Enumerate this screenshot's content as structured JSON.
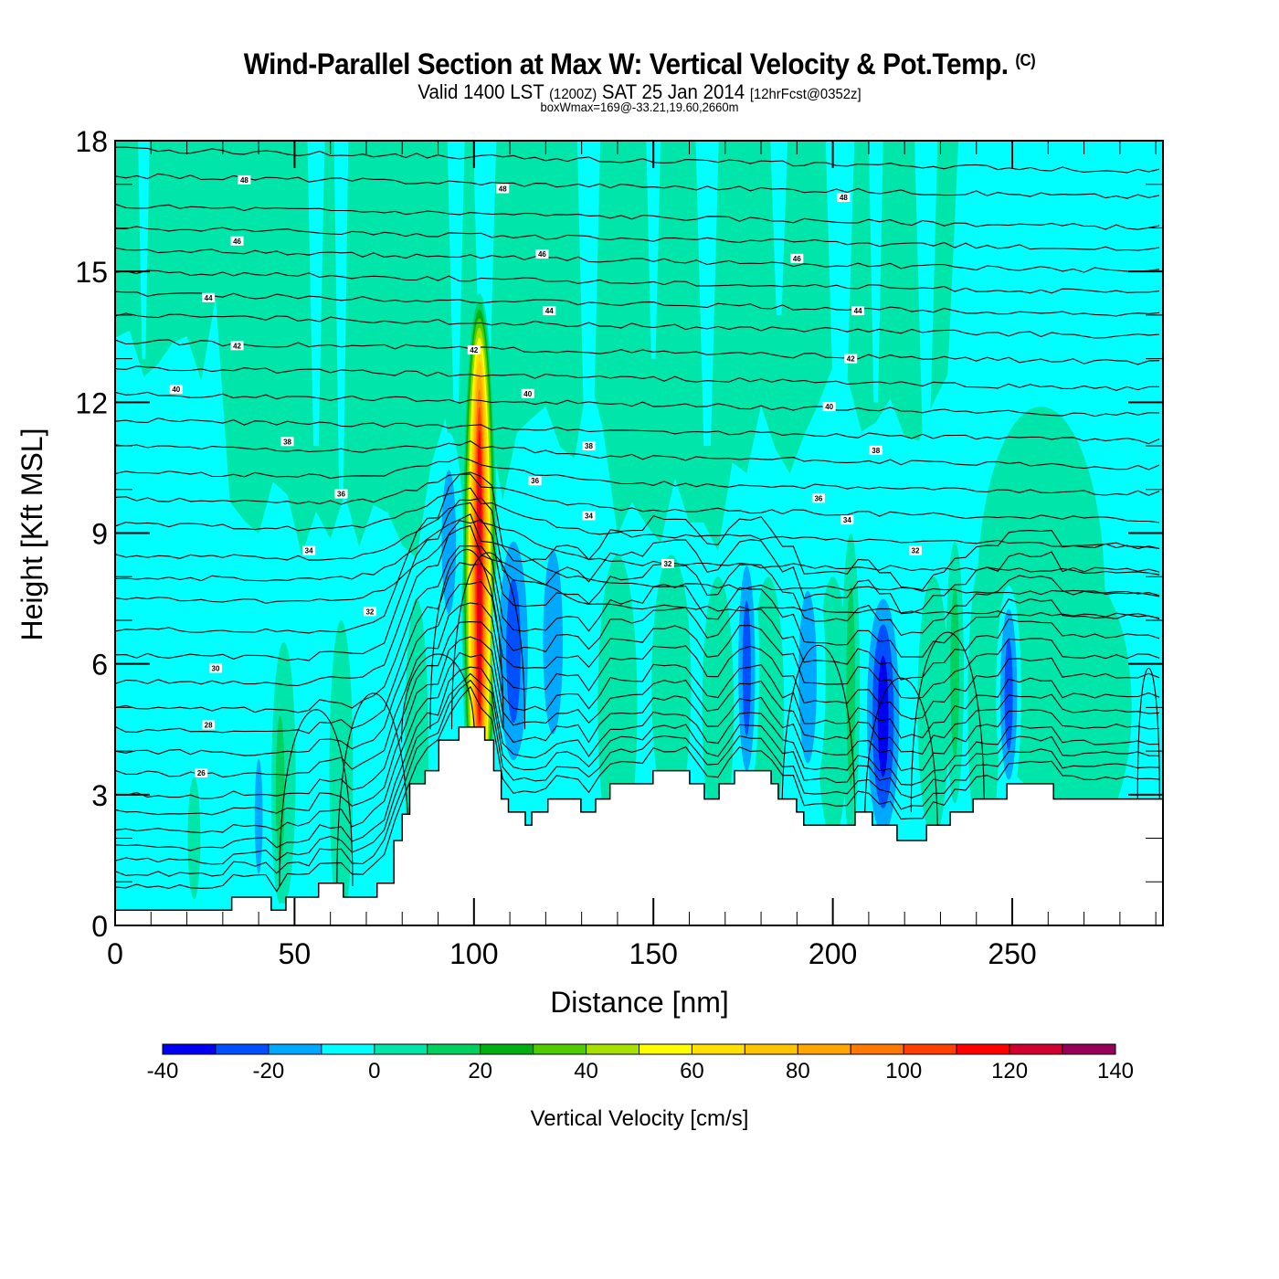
{
  "header": {
    "title": "Wind-Parallel Section at Max W: Vertical Velocity & Pot.Temp.",
    "title_mark": "(C)",
    "subtitle_a": "Valid 1400 LST",
    "subtitle_b": "(1200Z)",
    "subtitle_c": "SAT 25 Jan 2014",
    "subtitle_d": "[12hrFcst@0352z]",
    "subtitle2": "boxWmax=169@-33.21,19.60,2660m"
  },
  "chart_data": {
    "type": "heatmap",
    "title": "Wind-Parallel Section at Max W: Vertical Velocity & Pot.Temp.",
    "xlabel": "Distance [nm]",
    "ylabel": "Height [Kft MSL]",
    "xlim": [
      0,
      292
    ],
    "ylim": [
      0,
      18
    ],
    "xticks": [
      0,
      50,
      100,
      150,
      200,
      250
    ],
    "xminor_step": 10,
    "yticks": [
      0,
      3,
      6,
      9,
      12,
      15,
      18
    ],
    "yminor_step": 1,
    "colorbar": {
      "title": "Vertical Velocity [cm/s]",
      "levels": [
        -40,
        -30,
        -20,
        -10,
        0,
        10,
        20,
        30,
        40,
        50,
        60,
        70,
        80,
        90,
        100,
        110,
        120,
        130,
        140
      ],
      "tick_labels": [
        "-40",
        "-20",
        "0",
        "20",
        "40",
        "60",
        "80",
        "100",
        "120",
        "140"
      ],
      "colors": [
        "#0000f0",
        "#0050ff",
        "#00a8ff",
        "#00ffff",
        "#00e6aa",
        "#00d060",
        "#00b010",
        "#50cc00",
        "#a8e000",
        "#ffff00",
        "#ffe000",
        "#ffc400",
        "#ffa600",
        "#ff7800",
        "#ff4000",
        "#ff0000",
        "#d00030",
        "#960058"
      ],
      "placement": "bottom"
    },
    "background_value": -5,
    "w_max": 169,
    "w_field_features": [
      {
        "name": "upper-band",
        "x": [
          0,
          235
        ],
        "y": [
          9,
          18
        ],
        "value": 5
      },
      {
        "name": "updraft-core",
        "x": 101.5,
        "y": 8.0,
        "value": 120
      },
      {
        "name": "upwind-downdraft",
        "x": 93,
        "y": 8.8,
        "value": -15
      },
      {
        "name": "lee-downdraft-1",
        "x": 111,
        "y": 6.3,
        "value": -25
      },
      {
        "name": "lee-downdraft-2",
        "x": 122,
        "y": 6.5,
        "value": -15
      },
      {
        "name": "downdraft-175",
        "x": 176,
        "y": 5.9,
        "value": -25
      },
      {
        "name": "downdraft-193",
        "x": 193,
        "y": 5.7,
        "value": -15
      },
      {
        "name": "downdraft-215",
        "x": 214,
        "y": 4.8,
        "value": -35
      },
      {
        "name": "downdraft-249",
        "x": 249,
        "y": 5.3,
        "value": -25
      },
      {
        "name": "updraft-205",
        "x": 205,
        "y": 5.5,
        "value": 15
      },
      {
        "name": "updraft-234",
        "x": 234,
        "y": 5.8,
        "value": 15
      },
      {
        "name": "downdraft-40",
        "x": 40,
        "y": 2.5,
        "value": -15
      },
      {
        "name": "updraft-46",
        "x": 46,
        "y": 3.1,
        "value": 15
      }
    ],
    "terrain_kft": {
      "x": [
        0,
        32.5,
        43.5,
        47.6,
        56.7,
        63.6,
        73,
        77.7,
        80,
        82.1,
        86.4,
        90.2,
        95.8,
        103,
        105.5,
        107.6,
        109.6,
        109.9,
        114.3,
        116.1,
        120.6,
        129.8,
        133.9,
        137.9,
        149.9,
        160.1,
        164.2,
        168.3,
        172.6,
        182.8,
        184.8,
        189.9,
        191.9,
        206.2,
        211,
        217.9,
        226.1,
        232.7,
        239.1,
        248.5,
        261.5,
        292
      ],
      "h": [
        0.35,
        0.65,
        0.35,
        0.65,
        0.97,
        0.65,
        0.97,
        1.95,
        2.55,
        3.25,
        3.55,
        4.25,
        4.55,
        4.25,
        3.55,
        2.9,
        2.6,
        2.6,
        2.3,
        2.6,
        2.9,
        2.6,
        2.9,
        3.25,
        3.55,
        3.25,
        2.9,
        3.25,
        3.55,
        3.25,
        2.9,
        2.6,
        2.3,
        2.6,
        2.3,
        1.95,
        2.3,
        2.6,
        2.9,
        3.25,
        2.9,
        2.9
      ]
    },
    "pot_temp_contours": {
      "unit_label": "Pot.Temp.",
      "interval": 1,
      "levels_labeled": [
        26,
        28,
        30,
        32,
        34,
        36,
        38,
        40,
        42,
        44,
        46,
        48
      ],
      "left_edge_heights_kft": [
        0.9,
        1.2,
        1.5,
        1.8,
        2.2,
        2.6,
        3.0,
        3.5,
        4.0,
        4.5,
        5.0,
        5.6,
        6.2,
        6.8,
        7.5,
        8.0,
        8.5,
        9.2,
        9.8,
        10.4,
        11.0,
        11.6,
        12.2,
        12.8,
        13.4,
        14.0,
        14.5,
        15.0,
        15.5,
        16.0,
        16.5,
        17.2,
        17.8
      ],
      "labels": [
        {
          "text": "48",
          "x": 36,
          "y": 17.1
        },
        {
          "text": "46",
          "x": 34,
          "y": 15.7
        },
        {
          "text": "44",
          "x": 26,
          "y": 14.4
        },
        {
          "text": "42",
          "x": 34,
          "y": 13.3
        },
        {
          "text": "40",
          "x": 17,
          "y": 12.3
        },
        {
          "text": "38",
          "x": 48,
          "y": 11.1
        },
        {
          "text": "36",
          "x": 63,
          "y": 9.9
        },
        {
          "text": "34",
          "x": 54,
          "y": 8.6
        },
        {
          "text": "32",
          "x": 71,
          "y": 7.2
        },
        {
          "text": "30",
          "x": 28,
          "y": 5.9
        },
        {
          "text": "28",
          "x": 26,
          "y": 4.6
        },
        {
          "text": "26",
          "x": 24,
          "y": 3.5
        },
        {
          "text": "48",
          "x": 108,
          "y": 16.9
        },
        {
          "text": "46",
          "x": 119,
          "y": 15.4
        },
        {
          "text": "44",
          "x": 121,
          "y": 14.1
        },
        {
          "text": "42",
          "x": 100,
          "y": 13.2
        },
        {
          "text": "40",
          "x": 115,
          "y": 12.2
        },
        {
          "text": "38",
          "x": 132,
          "y": 11.0
        },
        {
          "text": "36",
          "x": 117,
          "y": 10.2
        },
        {
          "text": "34",
          "x": 132,
          "y": 9.4
        },
        {
          "text": "32",
          "x": 154,
          "y": 8.3
        },
        {
          "text": "48",
          "x": 203,
          "y": 16.7
        },
        {
          "text": "46",
          "x": 190,
          "y": 15.3
        },
        {
          "text": "44",
          "x": 207,
          "y": 14.1
        },
        {
          "text": "42",
          "x": 205,
          "y": 13.0
        },
        {
          "text": "40",
          "x": 199,
          "y": 11.9
        },
        {
          "text": "38",
          "x": 212,
          "y": 10.9
        },
        {
          "text": "36",
          "x": 196,
          "y": 9.8
        },
        {
          "text": "34",
          "x": 204,
          "y": 9.3
        },
        {
          "text": "32",
          "x": 223,
          "y": 8.6
        }
      ]
    }
  }
}
